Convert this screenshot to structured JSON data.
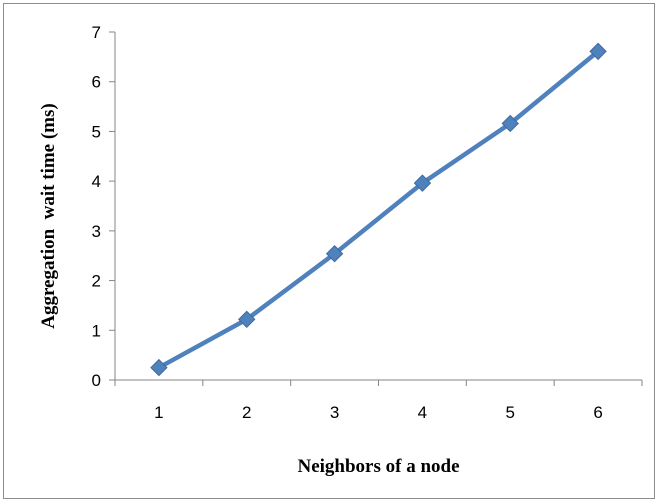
{
  "chart_data": {
    "type": "line",
    "title": "",
    "xlabel": "Neighbors of a node",
    "ylabel": "Aggregation  wait time (ms)",
    "categories": [
      "1",
      "2",
      "3",
      "4",
      "5",
      "6"
    ],
    "series": [
      {
        "values": [
          0.25,
          1.22,
          2.54,
          3.96,
          5.16,
          6.61
        ]
      }
    ],
    "ylim": [
      0,
      7
    ],
    "yticks": [
      "0",
      "1",
      "2",
      "3",
      "4",
      "5",
      "6",
      "7"
    ],
    "grid": false,
    "legend": "none",
    "marker": "diamond",
    "line_color": "#4f81bd",
    "line_edge_color": "#3f6a9e"
  }
}
